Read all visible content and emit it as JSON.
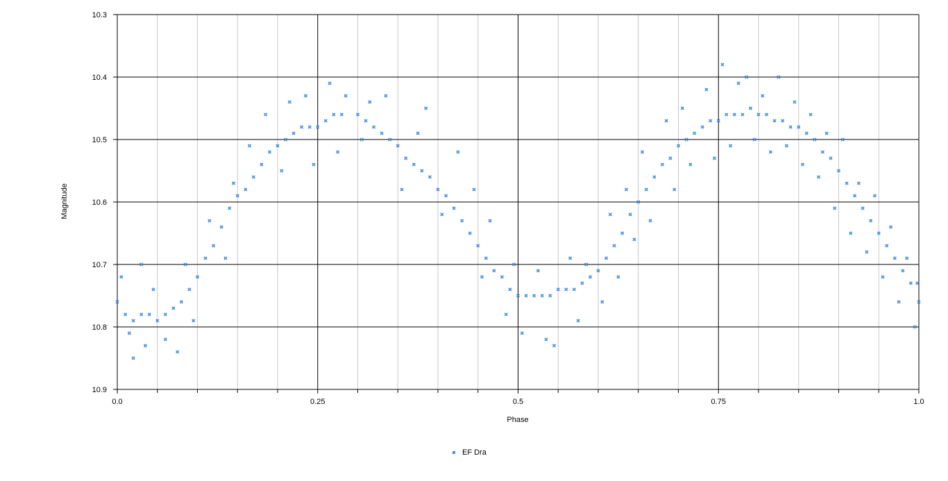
{
  "chart_data": {
    "type": "scatter",
    "title": "",
    "xlabel": "Phase",
    "ylabel": "Magnitude",
    "xlim": [
      0,
      1
    ],
    "ylim": [
      10.3,
      10.9
    ],
    "y_inverted": true,
    "x_major_ticks": [
      "0.0",
      "0.25",
      "0.5",
      "0.75",
      "1.0"
    ],
    "x_major_tick_values": [
      0,
      0.25,
      0.5,
      0.75,
      1.0
    ],
    "x_minor_tick_values": [
      0.05,
      0.1,
      0.15,
      0.2,
      0.3,
      0.35,
      0.4,
      0.45,
      0.55,
      0.6,
      0.65,
      0.7,
      0.8,
      0.85,
      0.9,
      0.95
    ],
    "y_ticks": [
      "10.3",
      "10.4",
      "10.5",
      "10.6",
      "10.7",
      "10.8",
      "10.9"
    ],
    "y_tick_values": [
      10.3,
      10.4,
      10.5,
      10.6,
      10.7,
      10.8,
      10.9
    ],
    "grid": true,
    "legend_position": "bottom-center",
    "series": [
      {
        "name": "EF Dra",
        "color": "#4a90e2",
        "marker": "x",
        "points": [
          [
            0.0,
            10.76
          ],
          [
            0.01,
            10.78
          ],
          [
            0.02,
            10.79
          ],
          [
            0.03,
            10.78
          ],
          [
            0.04,
            10.78
          ],
          [
            0.05,
            10.79
          ],
          [
            0.06,
            10.78
          ],
          [
            0.07,
            10.77
          ],
          [
            0.08,
            10.76
          ],
          [
            0.09,
            10.74
          ],
          [
            0.1,
            10.72
          ],
          [
            0.11,
            10.69
          ],
          [
            0.12,
            10.67
          ],
          [
            0.13,
            10.64
          ],
          [
            0.14,
            10.61
          ],
          [
            0.15,
            10.59
          ],
          [
            0.16,
            10.58
          ],
          [
            0.17,
            10.56
          ],
          [
            0.18,
            10.54
          ],
          [
            0.19,
            10.52
          ],
          [
            0.2,
            10.51
          ],
          [
            0.21,
            10.5
          ],
          [
            0.22,
            10.49
          ],
          [
            0.23,
            10.48
          ],
          [
            0.24,
            10.48
          ],
          [
            0.25,
            10.48
          ],
          [
            0.26,
            10.47
          ],
          [
            0.27,
            10.46
          ],
          [
            0.28,
            10.46
          ],
          [
            0.3,
            10.46
          ],
          [
            0.31,
            10.47
          ],
          [
            0.32,
            10.48
          ],
          [
            0.33,
            10.49
          ],
          [
            0.34,
            10.5
          ],
          [
            0.35,
            10.51
          ],
          [
            0.36,
            10.53
          ],
          [
            0.37,
            10.54
          ],
          [
            0.38,
            10.55
          ],
          [
            0.39,
            10.56
          ],
          [
            0.4,
            10.58
          ],
          [
            0.41,
            10.59
          ],
          [
            0.42,
            10.61
          ],
          [
            0.43,
            10.63
          ],
          [
            0.44,
            10.65
          ],
          [
            0.45,
            10.67
          ],
          [
            0.46,
            10.69
          ],
          [
            0.47,
            10.71
          ],
          [
            0.48,
            10.72
          ],
          [
            0.49,
            10.74
          ],
          [
            0.5,
            10.75
          ],
          [
            0.51,
            10.75
          ],
          [
            0.52,
            10.75
          ],
          [
            0.53,
            10.75
          ],
          [
            0.54,
            10.75
          ],
          [
            0.55,
            10.74
          ],
          [
            0.56,
            10.74
          ],
          [
            0.57,
            10.74
          ],
          [
            0.58,
            10.73
          ],
          [
            0.59,
            10.72
          ],
          [
            0.6,
            10.71
          ],
          [
            0.61,
            10.69
          ],
          [
            0.62,
            10.67
          ],
          [
            0.63,
            10.65
          ],
          [
            0.64,
            10.62
          ],
          [
            0.65,
            10.6
          ],
          [
            0.66,
            10.58
          ],
          [
            0.67,
            10.56
          ],
          [
            0.68,
            10.54
          ],
          [
            0.69,
            10.53
          ],
          [
            0.7,
            10.51
          ],
          [
            0.71,
            10.5
          ],
          [
            0.72,
            10.49
          ],
          [
            0.73,
            10.48
          ],
          [
            0.74,
            10.47
          ],
          [
            0.75,
            10.47
          ],
          [
            0.76,
            10.46
          ],
          [
            0.77,
            10.46
          ],
          [
            0.78,
            10.46
          ],
          [
            0.79,
            10.45
          ],
          [
            0.8,
            10.46
          ],
          [
            0.81,
            10.46
          ],
          [
            0.82,
            10.47
          ],
          [
            0.83,
            10.47
          ],
          [
            0.84,
            10.48
          ],
          [
            0.85,
            10.48
          ],
          [
            0.86,
            10.49
          ],
          [
            0.87,
            10.5
          ],
          [
            0.88,
            10.52
          ],
          [
            0.89,
            10.53
          ],
          [
            0.9,
            10.55
          ],
          [
            0.91,
            10.57
          ],
          [
            0.92,
            10.59
          ],
          [
            0.93,
            10.61
          ],
          [
            0.94,
            10.63
          ],
          [
            0.95,
            10.65
          ],
          [
            0.96,
            10.67
          ],
          [
            0.97,
            10.69
          ],
          [
            0.98,
            10.71
          ],
          [
            0.99,
            10.73
          ],
          [
            1.0,
            10.76
          ],
          [
            0.005,
            10.72
          ],
          [
            0.015,
            10.81
          ],
          [
            0.02,
            10.85
          ],
          [
            0.03,
            10.7
          ],
          [
            0.035,
            10.83
          ],
          [
            0.045,
            10.74
          ],
          [
            0.06,
            10.82
          ],
          [
            0.075,
            10.84
          ],
          [
            0.085,
            10.7
          ],
          [
            0.095,
            10.79
          ],
          [
            0.115,
            10.63
          ],
          [
            0.135,
            10.69
          ],
          [
            0.145,
            10.57
          ],
          [
            0.165,
            10.51
          ],
          [
            0.185,
            10.46
          ],
          [
            0.205,
            10.55
          ],
          [
            0.215,
            10.44
          ],
          [
            0.235,
            10.43
          ],
          [
            0.245,
            10.54
          ],
          [
            0.265,
            10.41
          ],
          [
            0.275,
            10.52
          ],
          [
            0.285,
            10.43
          ],
          [
            0.305,
            10.5
          ],
          [
            0.315,
            10.44
          ],
          [
            0.335,
            10.43
          ],
          [
            0.355,
            10.58
          ],
          [
            0.375,
            10.49
          ],
          [
            0.385,
            10.45
          ],
          [
            0.405,
            10.62
          ],
          [
            0.425,
            10.52
          ],
          [
            0.445,
            10.58
          ],
          [
            0.455,
            10.72
          ],
          [
            0.465,
            10.63
          ],
          [
            0.485,
            10.78
          ],
          [
            0.495,
            10.7
          ],
          [
            0.505,
            10.81
          ],
          [
            0.525,
            10.71
          ],
          [
            0.535,
            10.82
          ],
          [
            0.545,
            10.83
          ],
          [
            0.565,
            10.69
          ],
          [
            0.575,
            10.79
          ],
          [
            0.585,
            10.7
          ],
          [
            0.605,
            10.76
          ],
          [
            0.615,
            10.62
          ],
          [
            0.625,
            10.72
          ],
          [
            0.635,
            10.58
          ],
          [
            0.645,
            10.66
          ],
          [
            0.655,
            10.52
          ],
          [
            0.665,
            10.63
          ],
          [
            0.685,
            10.47
          ],
          [
            0.695,
            10.58
          ],
          [
            0.705,
            10.45
          ],
          [
            0.715,
            10.54
          ],
          [
            0.735,
            10.42
          ],
          [
            0.745,
            10.53
          ],
          [
            0.755,
            10.38
          ],
          [
            0.765,
            10.51
          ],
          [
            0.775,
            10.41
          ],
          [
            0.785,
            10.4
          ],
          [
            0.795,
            10.5
          ],
          [
            0.805,
            10.43
          ],
          [
            0.815,
            10.52
          ],
          [
            0.825,
            10.4
          ],
          [
            0.835,
            10.51
          ],
          [
            0.845,
            10.44
          ],
          [
            0.855,
            10.54
          ],
          [
            0.865,
            10.46
          ],
          [
            0.875,
            10.56
          ],
          [
            0.885,
            10.49
          ],
          [
            0.895,
            10.61
          ],
          [
            0.905,
            10.5
          ],
          [
            0.915,
            10.65
          ],
          [
            0.925,
            10.57
          ],
          [
            0.935,
            10.68
          ],
          [
            0.945,
            10.59
          ],
          [
            0.955,
            10.72
          ],
          [
            0.965,
            10.64
          ],
          [
            0.975,
            10.76
          ],
          [
            0.985,
            10.69
          ],
          [
            0.995,
            10.8
          ],
          [
            0.998,
            10.73
          ]
        ]
      }
    ]
  },
  "legend": {
    "label": "EF Dra",
    "color": "#4a90e2"
  },
  "colors": {
    "grid_major": "#000000",
    "grid_minor": "#c8c8c8",
    "axis": "#000000"
  }
}
